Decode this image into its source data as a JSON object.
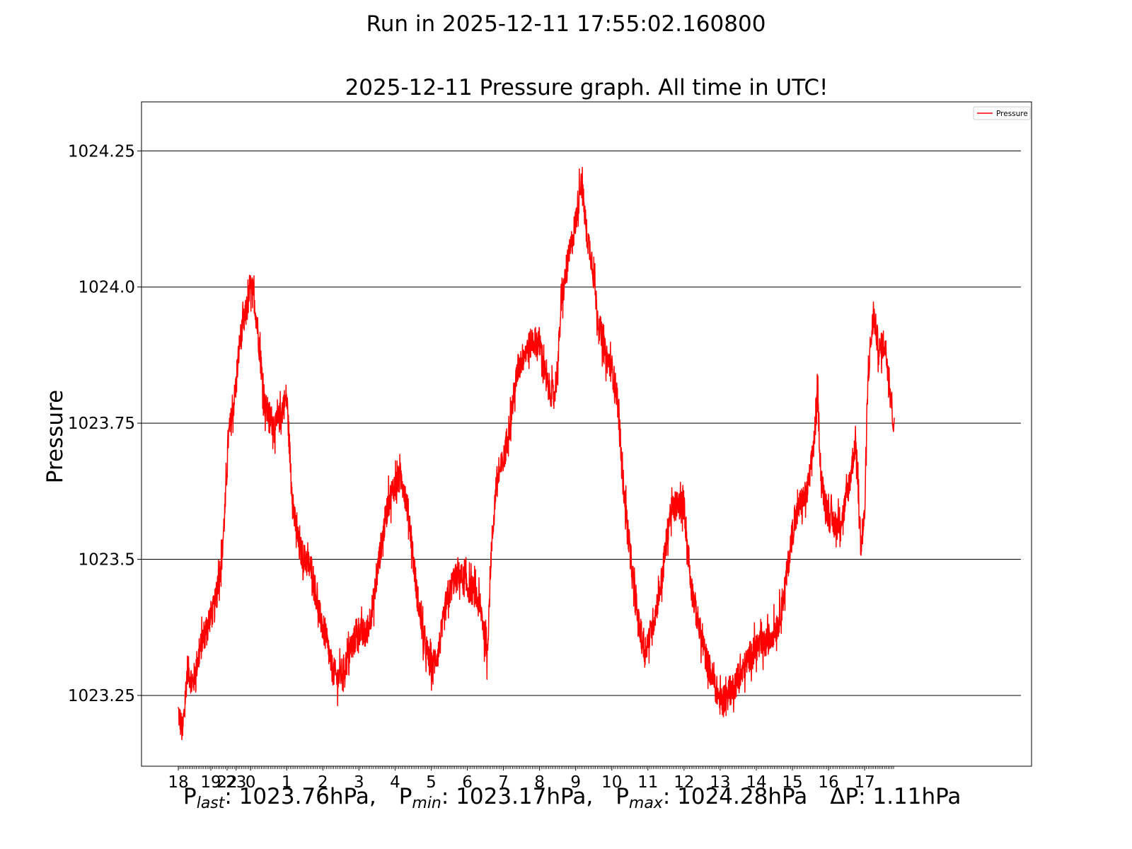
{
  "suptitle": "Run in 2025-12-11 17:55:02.160800",
  "stats": {
    "p_last_label": "P",
    "p_last_sub": "last",
    "p_last_value": ": 1023.76hPa,",
    "p_min_label": "P",
    "p_min_sub": "min",
    "p_min_value": ": 1023.17hPa,",
    "p_max_label": "P",
    "p_max_sub": "max",
    "p_max_value": ": 1024.28hPa",
    "delta": "ΔP: 1.11hPa"
  },
  "chart_data": {
    "type": "line",
    "title": "2025-12-11 Pressure graph. All time in UTC!",
    "xlabel": "",
    "ylabel": "Pressure",
    "ylim": [
      1023.12,
      1024.34
    ],
    "xlim": [
      16.98,
      41.62
    ],
    "grid": "horizontal",
    "legend": "top-right",
    "colors": {
      "Pressure": "#ff0000",
      "grid": "#000000"
    },
    "yticks": [
      {
        "value": 1023.25,
        "label": "1023.25"
      },
      {
        "value": 1023.5,
        "label": "1023.5"
      },
      {
        "value": 1023.75,
        "label": "1023.75"
      },
      {
        "value": 1024.0,
        "label": "1024.0"
      },
      {
        "value": 1024.25,
        "label": "1024.25"
      }
    ],
    "xticks": [
      {
        "value": 18.0,
        "label": "18"
      },
      {
        "value": 18.9,
        "label": "19"
      },
      {
        "value": 19.35,
        "label": "22"
      },
      {
        "value": 19.6,
        "label": "23"
      },
      {
        "value": 20.0,
        "label": "0"
      },
      {
        "value": 21.0,
        "label": "1"
      },
      {
        "value": 22.0,
        "label": "2"
      },
      {
        "value": 23.0,
        "label": "3"
      },
      {
        "value": 24.0,
        "label": "4"
      },
      {
        "value": 25.0,
        "label": "5"
      },
      {
        "value": 26.0,
        "label": "6"
      },
      {
        "value": 27.0,
        "label": "7"
      },
      {
        "value": 28.0,
        "label": "8"
      },
      {
        "value": 29.0,
        "label": "9"
      },
      {
        "value": 30.0,
        "label": "10"
      },
      {
        "value": 31.0,
        "label": "11"
      },
      {
        "value": 32.0,
        "label": "12"
      },
      {
        "value": 33.0,
        "label": "13"
      },
      {
        "value": 34.0,
        "label": "14"
      },
      {
        "value": 35.0,
        "label": "15"
      },
      {
        "value": 36.0,
        "label": "16"
      },
      {
        "value": 37.0,
        "label": "17"
      }
    ],
    "series": [
      {
        "name": "Pressure",
        "anchors": [
          [
            18.0,
            1023.22
          ],
          [
            18.12,
            1023.18
          ],
          [
            18.25,
            1023.3
          ],
          [
            18.4,
            1023.27
          ],
          [
            18.55,
            1023.32
          ],
          [
            18.7,
            1023.36
          ],
          [
            18.85,
            1023.39
          ],
          [
            19.0,
            1023.41
          ],
          [
            19.1,
            1023.46
          ],
          [
            19.2,
            1023.5
          ],
          [
            19.3,
            1023.6
          ],
          [
            19.38,
            1023.72
          ],
          [
            19.5,
            1023.77
          ],
          [
            19.6,
            1023.82
          ],
          [
            19.7,
            1023.9
          ],
          [
            19.8,
            1023.93
          ],
          [
            19.9,
            1023.96
          ],
          [
            20.0,
            1024.0
          ],
          [
            20.1,
            1023.98
          ],
          [
            20.2,
            1023.92
          ],
          [
            20.3,
            1023.85
          ],
          [
            20.4,
            1023.78
          ],
          [
            20.55,
            1023.76
          ],
          [
            20.7,
            1023.74
          ],
          [
            20.85,
            1023.77
          ],
          [
            21.0,
            1023.8
          ],
          [
            21.1,
            1023.68
          ],
          [
            21.2,
            1023.58
          ],
          [
            21.35,
            1023.52
          ],
          [
            21.5,
            1023.5
          ],
          [
            21.7,
            1023.48
          ],
          [
            21.9,
            1023.4
          ],
          [
            22.1,
            1023.35
          ],
          [
            22.25,
            1023.3
          ],
          [
            22.4,
            1023.28
          ],
          [
            22.6,
            1023.3
          ],
          [
            22.8,
            1023.34
          ],
          [
            23.0,
            1023.37
          ],
          [
            23.2,
            1023.36
          ],
          [
            23.4,
            1023.42
          ],
          [
            23.6,
            1023.52
          ],
          [
            23.8,
            1023.6
          ],
          [
            24.0,
            1023.64
          ],
          [
            24.2,
            1023.65
          ],
          [
            24.4,
            1023.57
          ],
          [
            24.6,
            1023.44
          ],
          [
            24.8,
            1023.35
          ],
          [
            25.0,
            1023.3
          ],
          [
            25.2,
            1023.33
          ],
          [
            25.4,
            1023.41
          ],
          [
            25.6,
            1023.46
          ],
          [
            25.8,
            1023.47
          ],
          [
            26.0,
            1023.45
          ],
          [
            26.2,
            1023.44
          ],
          [
            26.4,
            1023.4
          ],
          [
            26.55,
            1023.32
          ],
          [
            26.65,
            1023.5
          ],
          [
            26.8,
            1023.64
          ],
          [
            27.0,
            1023.68
          ],
          [
            27.2,
            1023.76
          ],
          [
            27.4,
            1023.85
          ],
          [
            27.6,
            1023.88
          ],
          [
            27.8,
            1023.9
          ],
          [
            28.0,
            1023.9
          ],
          [
            28.2,
            1023.82
          ],
          [
            28.4,
            1023.8
          ],
          [
            28.5,
            1023.85
          ],
          [
            28.6,
            1023.97
          ],
          [
            28.8,
            1024.05
          ],
          [
            29.0,
            1024.12
          ],
          [
            29.15,
            1024.2
          ],
          [
            29.3,
            1024.1
          ],
          [
            29.45,
            1024.05
          ],
          [
            29.6,
            1023.95
          ],
          [
            29.8,
            1023.88
          ],
          [
            30.0,
            1023.85
          ],
          [
            30.15,
            1023.8
          ],
          [
            30.3,
            1023.65
          ],
          [
            30.45,
            1023.55
          ],
          [
            30.6,
            1023.45
          ],
          [
            30.75,
            1023.38
          ],
          [
            30.9,
            1023.33
          ],
          [
            31.05,
            1023.36
          ],
          [
            31.2,
            1023.4
          ],
          [
            31.4,
            1023.47
          ],
          [
            31.6,
            1023.58
          ],
          [
            31.8,
            1023.6
          ],
          [
            32.0,
            1023.6
          ],
          [
            32.1,
            1023.52
          ],
          [
            32.2,
            1023.45
          ],
          [
            32.4,
            1023.38
          ],
          [
            32.6,
            1023.32
          ],
          [
            32.8,
            1023.28
          ],
          [
            33.0,
            1023.24
          ],
          [
            33.2,
            1023.25
          ],
          [
            33.4,
            1023.27
          ],
          [
            33.6,
            1023.29
          ],
          [
            33.8,
            1023.32
          ],
          [
            34.0,
            1023.34
          ],
          [
            34.2,
            1023.34
          ],
          [
            34.4,
            1023.36
          ],
          [
            34.6,
            1023.38
          ],
          [
            34.8,
            1023.45
          ],
          [
            35.0,
            1023.55
          ],
          [
            35.2,
            1023.6
          ],
          [
            35.4,
            1023.62
          ],
          [
            35.5,
            1023.66
          ],
          [
            35.6,
            1023.72
          ],
          [
            35.7,
            1023.8
          ],
          [
            35.8,
            1023.64
          ],
          [
            36.0,
            1023.58
          ],
          [
            36.2,
            1023.56
          ],
          [
            36.4,
            1023.58
          ],
          [
            36.6,
            1023.65
          ],
          [
            36.75,
            1023.72
          ],
          [
            36.9,
            1023.52
          ],
          [
            37.0,
            1023.58
          ],
          [
            37.1,
            1023.85
          ],
          [
            37.25,
            1023.95
          ],
          [
            37.4,
            1023.88
          ],
          [
            37.55,
            1023.9
          ],
          [
            37.7,
            1023.82
          ],
          [
            37.8,
            1023.75
          ]
        ],
        "noise_amplitude": 0.028,
        "last_value": 1023.76
      }
    ]
  }
}
